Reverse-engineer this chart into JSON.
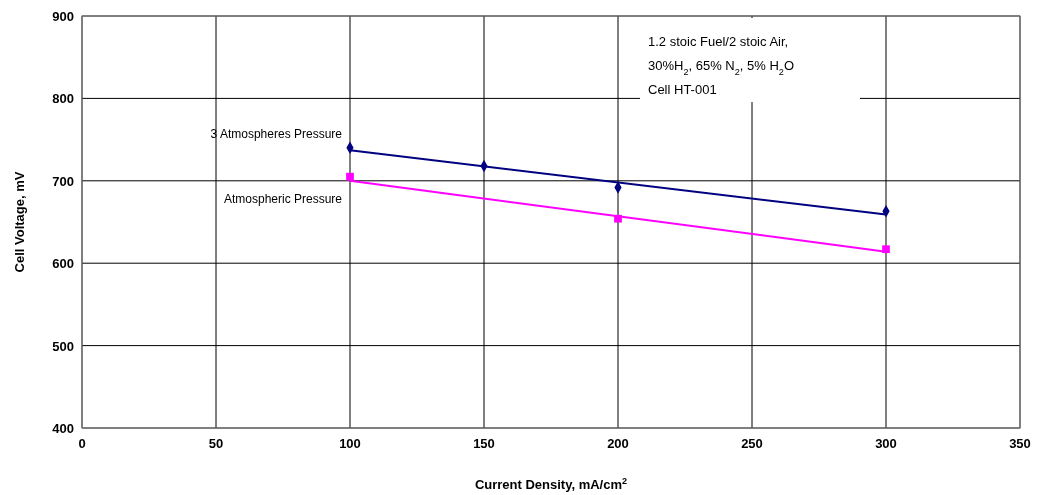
{
  "chart_data": {
    "type": "scatter",
    "xlabel": "Current Density, mA/cm$^{2}$",
    "ylabel": "Cell Voltage, mV",
    "xlim": [
      0,
      350
    ],
    "xticks": [
      0,
      50,
      100,
      150,
      200,
      250,
      300,
      350
    ],
    "ylim": [
      400,
      900
    ],
    "yticks": [
      400,
      500,
      600,
      700,
      800,
      900
    ],
    "grid": true,
    "annotations": [
      "1.2 stoic Fuel/2 stoic Air,",
      "30%H$_{2}$, 65% N$_{2}$, 5% H$_{2}$O",
      "Cell HT-001"
    ],
    "series": [
      {
        "type": "line",
        "color": "#000080",
        "x": [
          100,
          300
        ],
        "values": [
          737,
          659
        ],
        "marker": "none"
      },
      {
        "type": "line",
        "color": "#ff00ff",
        "x": [
          100,
          300
        ],
        "values": [
          700,
          614
        ],
        "marker": "none"
      },
      {
        "name": "3 Atmospheres Pressure",
        "color": "#000080",
        "x": [
          100,
          150,
          200,
          300
        ],
        "values": [
          740,
          718,
          692,
          663
        ],
        "marker": "diamond"
      },
      {
        "name": "Atmospheric Pressure",
        "color": "#ff00ff",
        "x": [
          100,
          200,
          300
        ],
        "values": [
          705,
          654,
          617
        ],
        "marker": "square"
      }
    ]
  }
}
